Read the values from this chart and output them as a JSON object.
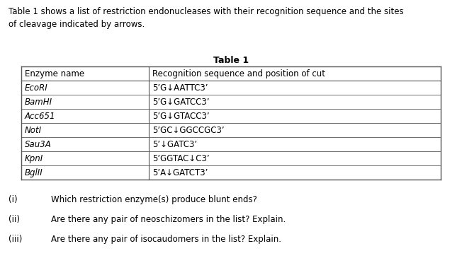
{
  "intro_text": "Table 1 shows a list of restriction endonucleases with their recognition sequence and the sites\nof cleavage indicated by arrows.",
  "table_title": "Table 1",
  "col_headers": [
    "Enzyme name",
    "Recognition sequence and position of cut"
  ],
  "rows": [
    [
      "EcoRI",
      "5’G↓AATTC3’"
    ],
    [
      "BamHI",
      "5’G↓GATCC3’"
    ],
    [
      "Acc651",
      "5’G↓GTACC3’"
    ],
    [
      "NotI",
      "5’GC↓GGCCGC3’"
    ],
    [
      "Sau3A",
      "5’↓GATC3’"
    ],
    [
      "KpnI",
      "5’GGTAC↓C3’"
    ],
    [
      "BglII",
      "5’A↓GATCT3’"
    ]
  ],
  "questions": [
    [
      "(i)",
      "Which restriction enzyme(s) produce blunt ends?"
    ],
    [
      "(ii)",
      "Are there any pair of neoschizomers in the list? Explain."
    ],
    [
      "(iii)",
      "Are there any pair of isocaudomers in the list? Explain."
    ]
  ],
  "bg_color": "#ffffff",
  "text_color": "#000000",
  "line_color": "#555555",
  "font_size": 8.5,
  "intro_font_size": 8.5,
  "title_font_size": 9.0,
  "q_font_size": 8.5
}
